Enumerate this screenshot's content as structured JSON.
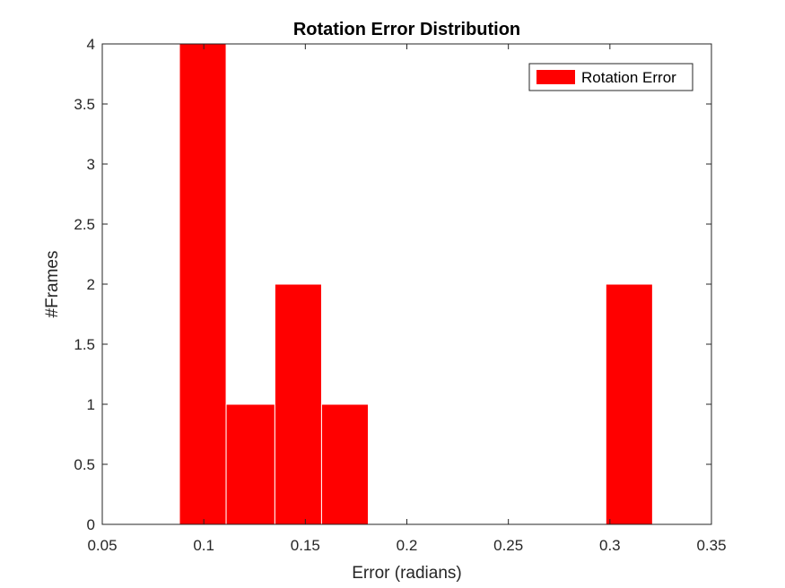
{
  "chart_data": {
    "type": "bar",
    "title": "Rotation Error Distribution",
    "xlabel": "Error (radians)",
    "ylabel": "#Frames",
    "xlim": [
      0.05,
      0.35
    ],
    "ylim": [
      0,
      4
    ],
    "xticks": [
      0.05,
      0.1,
      0.15,
      0.2,
      0.25,
      0.3,
      0.35
    ],
    "xtick_labels": [
      "0.05",
      "0.1",
      "0.15",
      "0.2",
      "0.25",
      "0.3",
      "0.35"
    ],
    "yticks": [
      0,
      0.5,
      1,
      1.5,
      2,
      2.5,
      3,
      3.5,
      4
    ],
    "ytick_labels": [
      "0",
      "0.5",
      "1",
      "1.5",
      "2",
      "2.5",
      "3",
      "3.5",
      "4"
    ],
    "grid": false,
    "legend_position": "top-right",
    "series": [
      {
        "name": "Rotation Error",
        "color": "#ff0000",
        "bins": [
          {
            "x0": 0.088,
            "x1": 0.111,
            "count": 4
          },
          {
            "x0": 0.111,
            "x1": 0.135,
            "count": 1
          },
          {
            "x0": 0.135,
            "x1": 0.158,
            "count": 2
          },
          {
            "x0": 0.158,
            "x1": 0.181,
            "count": 1
          },
          {
            "x0": 0.298,
            "x1": 0.321,
            "count": 2
          }
        ]
      }
    ]
  }
}
